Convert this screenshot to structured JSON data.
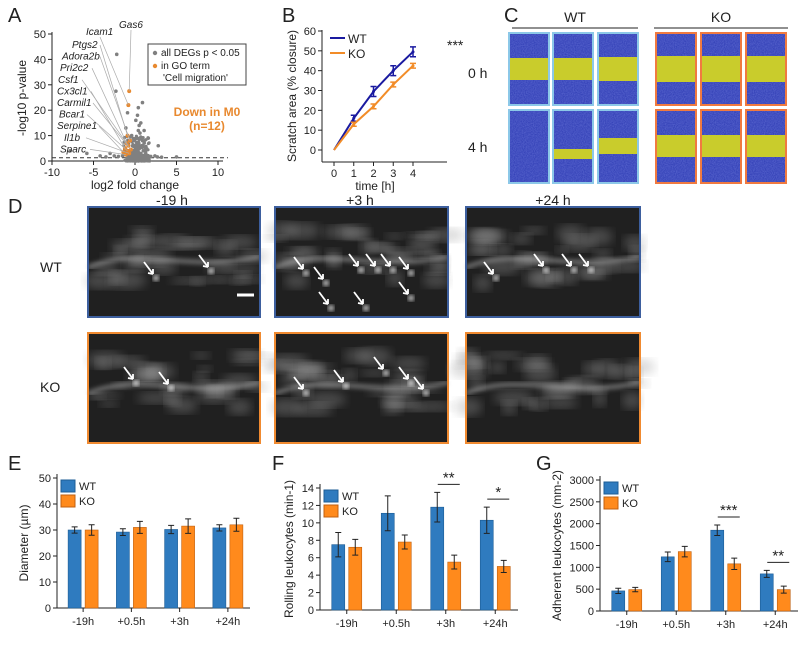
{
  "panels": {
    "A": "A",
    "B": "B",
    "C": "C",
    "D": "D",
    "E": "E",
    "F": "F",
    "G": "G"
  },
  "colors": {
    "wt_bar": "#2f7bbf",
    "ko_bar": "#ff8a1c",
    "wt_line": "#1a1aa0",
    "ko_line": "#f28c28",
    "grey_dot": "#808080",
    "orange_dot": "#e8892f",
    "wt_frame": "#8cc8e8",
    "ko_frame": "#f07a40",
    "wt_image_frame": "#3d5f9e",
    "ko_image_frame": "#f08a30"
  },
  "panel_c": {
    "wt_label": "WT",
    "ko_label": "KO",
    "row_labels": [
      "0 h",
      "4 h"
    ]
  },
  "panel_d": {
    "col_labels": [
      "-19 h",
      "+3 h",
      "+24 h"
    ],
    "row_labels": [
      "WT",
      "KO"
    ]
  },
  "chart_data": [
    {
      "id": "A",
      "type": "scatter",
      "xlabel": "log2 fold change",
      "ylabel": "-log10 p-value",
      "xlim": [
        -10,
        10
      ],
      "ylim": [
        0,
        50
      ],
      "xticks": [
        -10,
        -5,
        0,
        5,
        10
      ],
      "yticks": [
        0,
        10,
        20,
        30,
        40,
        50
      ],
      "threshold_line": 1.3,
      "legend": [
        "all DEGs p < 0.05",
        "in GO term",
        "'Cell migration'"
      ],
      "annotation": [
        "Down in M0",
        "(n=12)"
      ],
      "gene_labels": [
        "Gas6",
        "Icam1",
        "Ptgs2",
        "Adora2b",
        "Pri2c2",
        "Csf1",
        "Cx3cl1",
        "Carmil1",
        "Bcar1",
        "Serpine1",
        "Il1b",
        "Sparc"
      ],
      "highlighted": [
        [
          -0.7,
          27.5
        ],
        [
          -0.8,
          22
        ],
        [
          -0.9,
          10
        ],
        [
          -0.6,
          8
        ],
        [
          -1.0,
          7
        ],
        [
          -0.8,
          6
        ],
        [
          -1.2,
          5
        ],
        [
          -0.5,
          4.5
        ],
        [
          -0.9,
          4
        ],
        [
          -1.4,
          3.5
        ],
        [
          -0.7,
          3
        ],
        [
          -1.1,
          2.5
        ]
      ],
      "points": [
        [
          -2.2,
          42
        ],
        [
          -2.3,
          27.5
        ],
        [
          -0.8,
          22
        ],
        [
          0.9,
          23
        ],
        [
          0.4,
          21
        ],
        [
          -0.9,
          19
        ],
        [
          0.3,
          18
        ],
        [
          0.7,
          15
        ],
        [
          0.5,
          14
        ],
        [
          -1.1,
          13
        ],
        [
          1.1,
          12
        ],
        [
          0.6,
          11
        ],
        [
          -0.4,
          10
        ],
        [
          1.6,
          9
        ],
        [
          0.2,
          9
        ],
        [
          2.8,
          6
        ],
        [
          -3,
          3
        ],
        [
          -4.2,
          2
        ],
        [
          -7.8,
          4
        ],
        [
          -5.8,
          3
        ],
        [
          -2.5,
          2
        ],
        [
          1.5,
          2
        ],
        [
          2.4,
          2
        ],
        [
          3.2,
          1.5
        ],
        [
          5,
          1.6
        ],
        [
          0.3,
          7
        ],
        [
          0.8,
          6
        ],
        [
          -0.3,
          6
        ],
        [
          0.5,
          5
        ],
        [
          -0.2,
          4
        ],
        [
          1.0,
          4
        ],
        [
          0.2,
          3
        ],
        [
          0.7,
          3
        ],
        [
          -0.6,
          3
        ],
        [
          1.3,
          3
        ],
        [
          -1.5,
          2
        ],
        [
          0.4,
          2
        ],
        [
          -2,
          1.8
        ],
        [
          1.9,
          1.8
        ],
        [
          2.7,
          1.6
        ],
        [
          -3.5,
          1.6
        ],
        [
          0.1,
          1.5
        ],
        [
          -0.8,
          1.5
        ],
        [
          0.6,
          1.5
        ],
        [
          1.2,
          5.5
        ],
        [
          -0.1,
          8
        ],
        [
          0.4,
          12
        ],
        [
          0.1,
          16
        ],
        [
          0.3,
          4.5
        ],
        [
          0.9,
          8
        ]
      ]
    },
    {
      "id": "B",
      "type": "line",
      "xlabel": "time [h]",
      "ylabel": "Scratch area (% closure)",
      "xlim": [
        0,
        4
      ],
      "ylim": [
        0,
        60
      ],
      "xticks": [
        0,
        1,
        2,
        3,
        4
      ],
      "yticks": [
        0,
        10,
        20,
        30,
        40,
        50,
        60
      ],
      "x": [
        0,
        1,
        2,
        3,
        4
      ],
      "series": [
        {
          "name": "WT",
          "values": [
            0,
            16,
            29.5,
            40,
            49.5
          ],
          "errors": [
            0,
            1.5,
            2.5,
            2.5,
            2.5
          ]
        },
        {
          "name": "KO",
          "values": [
            0,
            13,
            22,
            33,
            42.5
          ],
          "errors": [
            0,
            1,
            1.2,
            1.2,
            1.2
          ]
        }
      ],
      "significance": "***"
    },
    {
      "id": "E",
      "type": "bar",
      "ylabel": "Diameter (µm)",
      "categories": [
        "-19h",
        "+0.5h",
        "+3h",
        "+24h"
      ],
      "ylim": [
        0,
        50
      ],
      "yticks": [
        0,
        10,
        20,
        30,
        40,
        50
      ],
      "series": [
        {
          "name": "WT",
          "values": [
            30,
            29.2,
            30.2,
            30.8
          ],
          "errors": [
            1.2,
            1.3,
            1.6,
            1.2
          ]
        },
        {
          "name": "KO",
          "values": [
            30,
            31,
            31.5,
            32
          ],
          "errors": [
            2.0,
            2.3,
            2.8,
            2.5
          ]
        }
      ],
      "significance": []
    },
    {
      "id": "F",
      "type": "bar",
      "ylabel": "Rolling leukocytes (min-1)",
      "categories": [
        "-19h",
        "+0.5h",
        "+3h",
        "+24h"
      ],
      "ylim": [
        0,
        14
      ],
      "yticks": [
        0,
        2,
        4,
        6,
        8,
        10,
        12,
        14
      ],
      "series": [
        {
          "name": "WT",
          "values": [
            7.5,
            11.1,
            11.8,
            10.3
          ],
          "errors": [
            1.4,
            2.0,
            1.7,
            1.5
          ]
        },
        {
          "name": "KO",
          "values": [
            7.2,
            7.8,
            5.5,
            5.0
          ],
          "errors": [
            0.9,
            0.8,
            0.8,
            0.7
          ]
        }
      ],
      "significance": [
        {
          "category": 2,
          "label": "**"
        },
        {
          "category": 3,
          "label": "*"
        }
      ]
    },
    {
      "id": "G",
      "type": "bar",
      "ylabel": "Adherent leukocytes (mm-2)",
      "categories": [
        "-19h",
        "+0.5h",
        "+3h",
        "+24h"
      ],
      "ylim": [
        0,
        3000
      ],
      "yticks": [
        0,
        500,
        1000,
        1500,
        2000,
        2500,
        3000
      ],
      "series": [
        {
          "name": "WT",
          "values": [
            460,
            1240,
            1850,
            850
          ],
          "errors": [
            60,
            110,
            120,
            80
          ]
        },
        {
          "name": "KO",
          "values": [
            490,
            1360,
            1080,
            490
          ],
          "errors": [
            50,
            120,
            130,
            80
          ]
        }
      ],
      "significance": [
        {
          "category": 2,
          "label": "***"
        },
        {
          "category": 3,
          "label": "**"
        }
      ]
    }
  ]
}
